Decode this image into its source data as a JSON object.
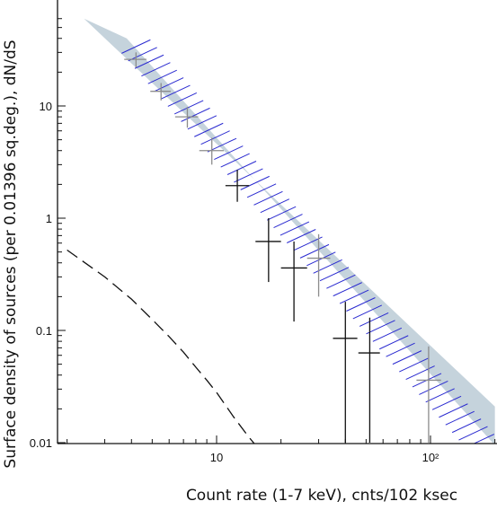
{
  "chart_data": {
    "type": "scatter",
    "title": "",
    "xlabel": "Count rate (1-7 keV), cnts/102 ksec",
    "ylabel": "Surface density of sources (per 0.01396 sq.deg.), dN/dS",
    "xscale": "log",
    "yscale": "log",
    "xlim": [
      2,
      200
    ],
    "ylim": [
      0.01,
      60
    ],
    "grid": false,
    "x_tick_labels": [
      "10",
      "10²"
    ],
    "x_major_ticks": [
      10,
      100
    ],
    "y_tick_labels": [
      "0.01",
      "0.1",
      "1",
      "10"
    ],
    "y_major_ticks": [
      0.01,
      0.1,
      1,
      10
    ],
    "colors": {
      "axes": "#111111",
      "band_fill": "#c5d3dc",
      "hatch": "#2a2ad0",
      "data_black": "#111111",
      "data_grey": "#8c8c8c"
    },
    "series": [
      {
        "kind": "points-with-errorbars",
        "points": [
          {
            "x": 4.2,
            "y": 26,
            "xerr": [
              3.7,
              4.7
            ],
            "yerr": [
              22,
              30
            ],
            "color": "grey"
          },
          {
            "x": 5.5,
            "y": 13.5,
            "xerr": [
              4.9,
              6.1
            ],
            "yerr": [
              11.2,
              16
            ],
            "color": "grey"
          },
          {
            "x": 7.3,
            "y": 8,
            "xerr": [
              6.4,
              8.2
            ],
            "yerr": [
              6.4,
              9.8
            ],
            "color": "grey"
          },
          {
            "x": 9.5,
            "y": 4,
            "xerr": [
              8.3,
              10.8
            ],
            "yerr": [
              3.0,
              5.2
            ],
            "color": "grey"
          },
          {
            "x": 12.5,
            "y": 1.95,
            "xerr": [
              11,
              14.2
            ],
            "yerr": [
              1.4,
              2.7
            ],
            "color": "black"
          },
          {
            "x": 17.5,
            "y": 0.62,
            "xerr": [
              15.2,
              20
            ],
            "yerr": [
              0.27,
              1.0
            ],
            "color": "black"
          },
          {
            "x": 23,
            "y": 0.36,
            "xerr": [
              20,
              26.5
            ],
            "yerr": [
              0.12,
              0.62
            ],
            "color": "black"
          },
          {
            "x": 30,
            "y": 0.44,
            "xerr": [
              26.5,
              34
            ],
            "yerr": [
              0.2,
              0.72
            ],
            "color": "grey"
          },
          {
            "x": 40,
            "y": 0.085,
            "xerr": [
              35,
              45.5
            ],
            "yerr": [
              0.01,
              0.18
            ],
            "color": "black"
          },
          {
            "x": 52,
            "y": 0.063,
            "xerr": [
              46,
              58
            ],
            "yerr": [
              0.01,
              0.13
            ],
            "color": "black"
          },
          {
            "x": 98,
            "y": 0.036,
            "xerr": [
              86,
              112
            ],
            "yerr": [
              0.01,
              0.072
            ],
            "color": "grey"
          }
        ]
      },
      {
        "kind": "shaded-band",
        "upper": [
          [
            2.4,
            60
          ],
          [
            200,
            0.021
          ]
        ],
        "lower": [
          [
            3.8,
            40
          ],
          [
            200,
            0.0095
          ]
        ]
      },
      {
        "kind": "hatched-band",
        "upper": [
          [
            3.8,
            40
          ],
          [
            200,
            0.0095
          ]
        ],
        "lower": [
          [
            4.2,
            30
          ],
          [
            170,
            0.0092
          ]
        ]
      },
      {
        "kind": "dashed-curve",
        "points": [
          [
            2,
            0.52
          ],
          [
            3,
            0.3
          ],
          [
            4,
            0.19
          ],
          [
            5,
            0.125
          ],
          [
            6,
            0.088
          ],
          [
            7,
            0.064
          ],
          [
            8,
            0.047
          ],
          [
            9,
            0.036
          ],
          [
            10,
            0.028
          ],
          [
            12,
            0.017
          ],
          [
            14,
            0.0115
          ],
          [
            15,
            0.0098
          ]
        ]
      }
    ]
  }
}
